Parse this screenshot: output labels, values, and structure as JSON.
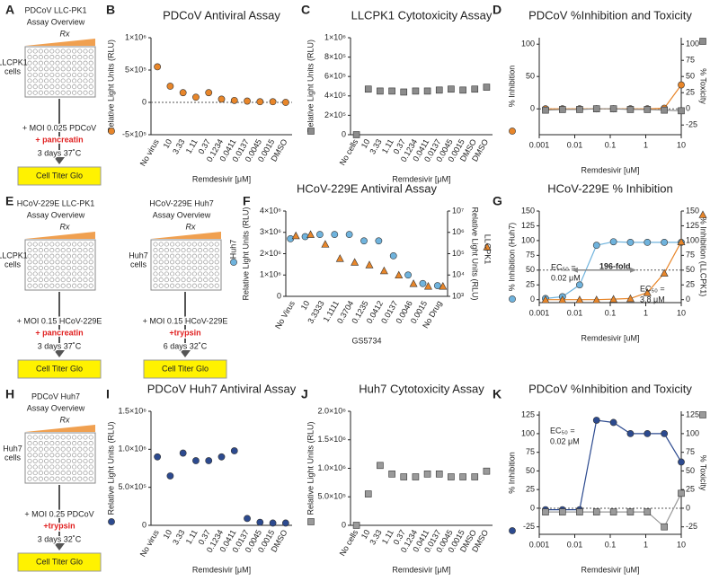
{
  "panel_labels": [
    "A",
    "B",
    "C",
    "D",
    "E",
    "F",
    "G",
    "H",
    "I",
    "J",
    "K"
  ],
  "diagrams": [
    {
      "title": [
        "PDCoV LLC-PK1",
        "Assay Overview"
      ],
      "drug": "Rx",
      "cells": [
        "LLCPK1",
        "cells"
      ],
      "infection": "+ MOI 0.025 PDCoV",
      "enzyme": "+ pancreatin",
      "incubation": "3 days 37˚C",
      "readout": "Cell Titer Glo"
    },
    {
      "title": [
        "HCoV-229E LLC-PK1",
        "Assay Overview"
      ],
      "drug": "Rx",
      "cells": [
        "LLCPK1",
        "cells"
      ],
      "infection": "+ MOI 0.15 HCoV-229E",
      "enzyme": "+ pancreatin",
      "incubation": "3 days 37˚C",
      "readout": "Cell Titer Glo"
    },
    {
      "title": [
        "HCoV-229E Huh7",
        "Assay Overview"
      ],
      "drug": "Rx",
      "cells": [
        "Huh7",
        "cells"
      ],
      "infection": "+ MOI 0.15 HCoV-229E",
      "enzyme": "+trypsin",
      "incubation": "6 days 32˚C",
      "readout": "Cell Titer Glo"
    },
    {
      "title": [
        "PDCoV Huh7",
        "Assay Overview"
      ],
      "drug": "Rx",
      "cells": [
        "Huh7",
        "cells"
      ],
      "infection": "+ MOI 0.25 PDCoV",
      "enzyme": "+trypsin",
      "incubation": "3 days 32˚C",
      "readout": "Cell Titer Glo"
    }
  ],
  "chart_data": [
    {
      "type": "dot",
      "title": "PDCoV Antiviral Assay",
      "xlabel": "Remdesivir [μM]",
      "ylabel": "Relative Light Units (RLU)",
      "categories": [
        "No virus",
        "10",
        "3.33",
        "1.11",
        "0.37",
        "0.1234",
        "0.0411",
        "0.0137",
        "0.0045",
        "0.0015",
        "DMSO"
      ],
      "series": [
        {
          "color": "#e8862a",
          "marker": "circle",
          "values": [
            550000,
            250000,
            150000,
            80000,
            150000,
            50000,
            30000,
            20000,
            10000,
            10000,
            0
          ]
        }
      ],
      "ylim": [
        -500000,
        1000000
      ],
      "yticks": [
        {
          "value": -500000,
          "label": "-5×10⁵"
        },
        0,
        {
          "value": 500000,
          "label": "5×10⁵"
        },
        {
          "value": 1000000,
          "label": "1×10⁶"
        }
      ],
      "hline": 0
    },
    {
      "type": "dot",
      "title": "LLCPK1 Cytotoxicity Assay",
      "xlabel": "Remdesivir [μM]",
      "ylabel": "Relative Light Units (RLU)",
      "categories": [
        "No cells",
        "10",
        "3.33",
        "1.11",
        "0.37",
        "0.1234",
        "0.0411",
        "0.0137",
        "0.0045",
        "0.0015",
        "DMSO",
        "DMSO"
      ],
      "series": [
        {
          "color": "#8c8c8c",
          "marker": "square",
          "values": [
            0,
            470000,
            450000,
            450000,
            440000,
            450000,
            450000,
            460000,
            470000,
            460000,
            470000,
            490000
          ]
        }
      ],
      "ylim": [
        0,
        1000000
      ],
      "yticks": [
        0,
        {
          "value": 200000,
          "label": "2×10⁵"
        },
        {
          "value": 400000,
          "label": "4×10⁵"
        },
        {
          "value": 600000,
          "label": "6×10⁵"
        },
        {
          "value": 800000,
          "label": "8×10⁵"
        },
        {
          "value": 1000000,
          "label": "1×10⁶"
        }
      ]
    },
    {
      "type": "line",
      "title": "PDCoV %Inhibition and Toxicity",
      "xlabel": "Remdesivir [uM]",
      "ylabel": "% Inhibition",
      "y2label": "% Toxicity",
      "xlog": true,
      "xlim": [
        0.001,
        10
      ],
      "xticks": [
        0.001,
        0.01,
        0.1,
        1,
        10
      ],
      "x": [
        0.0015,
        0.0045,
        0.0137,
        0.0411,
        0.1234,
        0.37,
        1.11,
        3.33,
        10
      ],
      "series": [
        {
          "color": "#e8862a",
          "marker": "circle",
          "values": [
            0,
            0,
            0,
            0,
            0,
            0,
            0,
            1,
            37
          ]
        },
        {
          "color": "#8c8c8c",
          "marker": "square",
          "axis": "y2",
          "values": [
            -2,
            -1,
            -1,
            0,
            0,
            -1,
            -1,
            -2,
            -3
          ]
        }
      ],
      "ylim": [
        -40,
        110
      ],
      "yticks": [
        0,
        50,
        100
      ],
      "y2lim": [
        -40,
        110
      ],
      "y2ticks": [
        -25,
        0,
        25,
        50,
        75,
        100
      ],
      "hline": 0
    },
    {
      "type": "dot",
      "title": "HCoV-229E Antiviral Assay",
      "xlabel": "GS5734",
      "ylabel": "Relative Light Units (RLU)",
      "y2label": "Relative Light Units (RLU)",
      "categories": [
        "No Virus",
        "10",
        "3.3333",
        "1.1111",
        "0.3704",
        "0.1235",
        "0.0412",
        "0.0137",
        "0.0046",
        "0.0015",
        "No Drug"
      ],
      "series": [
        {
          "name": "Huh7",
          "color": "#6fb3dd",
          "marker": "circle",
          "values": [
            2700000,
            2800000,
            2900000,
            2900000,
            2900000,
            2600000,
            2600000,
            1900000,
            1000000,
            600000,
            500000
          ]
        },
        {
          "name": "LLCPK1",
          "color": "#e8862a",
          "marker": "triangle",
          "axis": "y2",
          "values": [
            700000,
            800000,
            280000,
            60000,
            40000,
            30000,
            16000,
            10000,
            4000,
            3000,
            3000
          ]
        }
      ],
      "ylim": [
        0,
        4000000
      ],
      "yticks": [
        0,
        {
          "value": 1000000,
          "label": "1×10⁶"
        },
        {
          "value": 2000000,
          "label": "2×10⁶"
        },
        {
          "value": 3000000,
          "label": "3×10⁶"
        },
        {
          "value": 4000000,
          "label": "4×10⁶"
        }
      ],
      "y2log": true,
      "y2lim": [
        1000,
        10000000
      ],
      "y2ticks": [
        {
          "value": 1000,
          "label": "10³"
        },
        {
          "value": 10000,
          "label": "10⁴"
        },
        {
          "value": 100000,
          "label": "10⁵"
        },
        {
          "value": 1000000,
          "label": "10⁶"
        },
        {
          "value": 10000000,
          "label": "10⁷"
        }
      ]
    },
    {
      "type": "line",
      "title": "HCoV-229E % Inhibition",
      "xlabel": "Remdesivir [uM]",
      "ylabel": "% Inhibition (Huh7)",
      "y2label": "% Inhibition (LLCPK1)",
      "xlog": true,
      "xlim": [
        0.001,
        10
      ],
      "xticks": [
        0.001,
        0.01,
        0.1,
        1,
        10
      ],
      "x": [
        0.0015,
        0.0045,
        0.0137,
        0.0411,
        0.1234,
        0.37,
        1.11,
        3.33,
        10
      ],
      "series": [
        {
          "color": "#6fb3dd",
          "marker": "circle",
          "values": [
            2,
            5,
            25,
            92,
            98,
            97,
            97,
            97,
            97
          ]
        },
        {
          "color": "#e8862a",
          "marker": "triangle",
          "axis": "y2",
          "values": [
            0,
            0,
            0,
            0,
            1,
            2,
            12,
            45,
            98
          ]
        }
      ],
      "ylim": [
        -5,
        150
      ],
      "yticks": [
        0,
        25,
        50,
        75,
        100,
        125,
        150
      ],
      "y2lim": [
        -5,
        150
      ],
      "y2ticks": [
        0,
        25,
        50,
        75,
        100,
        125,
        150
      ],
      "hline": 50,
      "annotations": [
        "EC₅₀ =",
        "0.02 μM",
        "196-fold",
        "EC₅₀ =",
        "3.8 μM"
      ]
    },
    {
      "type": "dot",
      "title": "PDCoV Huh7 Antiviral Assay",
      "xlabel": "Remdesivir [μM]",
      "ylabel": "Relative Light Units (RLU)",
      "categories": [
        "No virus",
        "10",
        "3.33",
        "1.11",
        "0.37",
        "0.1234",
        "0.0411",
        "0.0137",
        "0.0045",
        "0.0015",
        "DMSO"
      ],
      "series": [
        {
          "color": "#2c4a8f",
          "marker": "circle",
          "values": [
            900000,
            650000,
            950000,
            850000,
            850000,
            900000,
            980000,
            90000,
            40000,
            30000,
            30000
          ]
        }
      ],
      "ylim": [
        0,
        1500000
      ],
      "yticks": [
        0,
        {
          "value": 500000,
          "label": "5.0×10⁵"
        },
        {
          "value": 1000000,
          "label": "1.0×10⁶"
        },
        {
          "value": 1500000,
          "label": "1.5×10⁶"
        }
      ]
    },
    {
      "type": "dot",
      "title": "Huh7 Cytotoxicity Assay",
      "xlabel": "Remdesivir [μM]",
      "ylabel": "Relative Light Units (RLU)",
      "categories": [
        "No cells",
        "10",
        "3.33",
        "1.11",
        "0.37",
        "0.1234",
        "0.0411",
        "0.0137",
        "0.0045",
        "0.0015",
        "DMSO",
        "DMSO"
      ],
      "series": [
        {
          "color": "#9a9a9a",
          "marker": "square",
          "values": [
            0,
            550000,
            1050000,
            900000,
            850000,
            850000,
            900000,
            900000,
            850000,
            850000,
            850000,
            950000
          ]
        }
      ],
      "ylim": [
        0,
        2000000
      ],
      "yticks": [
        0,
        {
          "value": 500000,
          "label": "5.0×10⁵"
        },
        {
          "value": 1000000,
          "label": "1.0×10⁶"
        },
        {
          "value": 1500000,
          "label": "1.5×10⁶"
        },
        {
          "value": 2000000,
          "label": "2.0×10⁶"
        }
      ]
    },
    {
      "type": "line",
      "title": "PDCoV %Inhibition and Toxicity",
      "xlabel": "Remdesivir [uM]",
      "ylabel": "% Inhibition",
      "y2label": "% Toxicity",
      "xlog": true,
      "xlim": [
        0.001,
        10
      ],
      "xticks": [
        0.001,
        0.01,
        0.1,
        1,
        10
      ],
      "x": [
        0.0015,
        0.0045,
        0.0137,
        0.0411,
        0.1234,
        0.37,
        1.11,
        3.33,
        10
      ],
      "series": [
        {
          "color": "#2c4a8f",
          "marker": "circle",
          "values": [
            -2,
            -2,
            -2,
            118,
            115,
            100,
            100,
            100,
            62
          ]
        },
        {
          "color": "#9a9a9a",
          "marker": "square",
          "axis": "y2",
          "values": [
            -5,
            -5,
            -5,
            -5,
            -5,
            -5,
            -5,
            -25,
            20
          ]
        }
      ],
      "ylim": [
        -35,
        130
      ],
      "yticks": [
        -25,
        0,
        25,
        50,
        75,
        100,
        125
      ],
      "y2lim": [
        -35,
        130
      ],
      "y2ticks": [
        -25,
        0,
        25,
        50,
        75,
        100,
        125
      ],
      "hline": 0,
      "annotations": [
        "EC₅₀ =",
        "0.02 μM"
      ]
    }
  ]
}
